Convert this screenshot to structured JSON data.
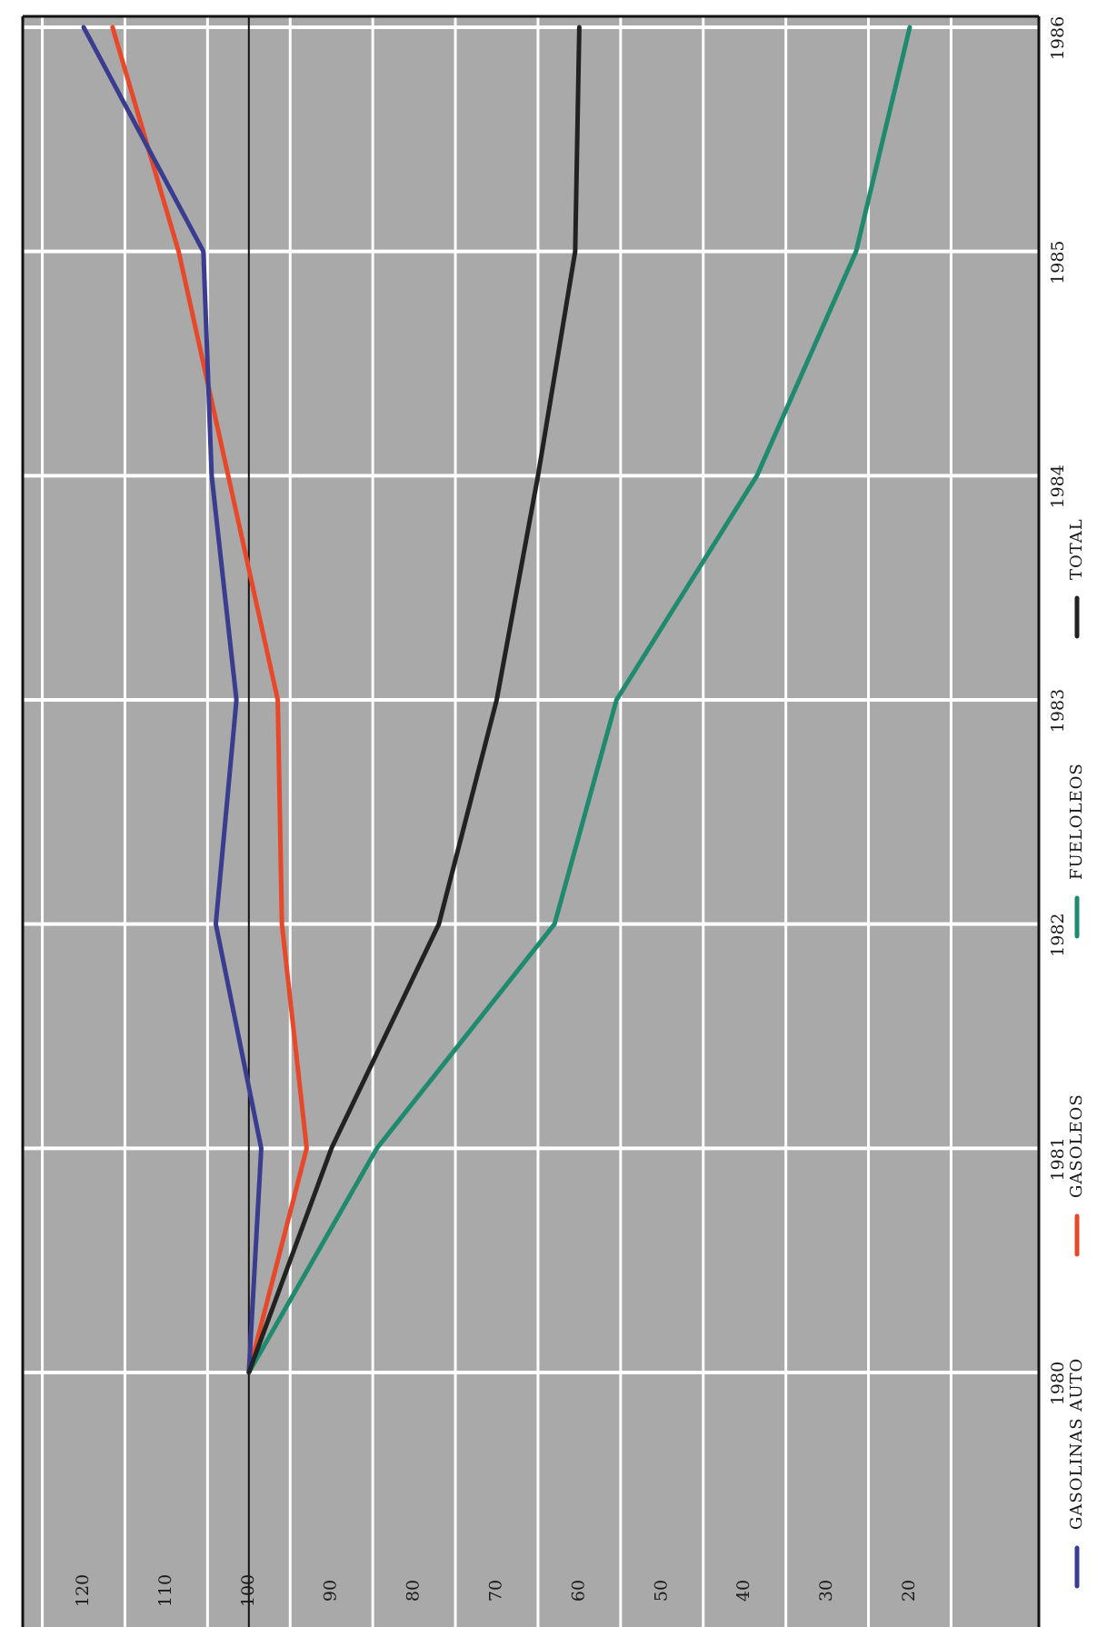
{
  "chart_data": {
    "type": "line",
    "title": "",
    "xlabel": "",
    "ylabel": "",
    "x": [
      1980,
      1981,
      1982,
      1983,
      1984,
      1985,
      1986
    ],
    "y_ticks": [
      120,
      110,
      100,
      90,
      80,
      70,
      60,
      50,
      40,
      30,
      20
    ],
    "ylim": [
      15,
      125
    ],
    "grid": true,
    "legend_position": "bottom",
    "reference_line": 100,
    "background_color": "#a9a9a9",
    "series": [
      {
        "name": "GASOLINAS AUTO",
        "color": "#3a3d8f",
        "values": [
          100,
          98.5,
          104,
          101.5,
          104.5,
          105.5,
          120
        ]
      },
      {
        "name": "GASOLEOS",
        "color": "#e8482a",
        "values": [
          100,
          93,
          96,
          96.5,
          102.5,
          108.5,
          116.5
        ]
      },
      {
        "name": "FUELOLEOS",
        "color": "#1f8a6e",
        "values": [
          100,
          84.5,
          63,
          55.5,
          38.5,
          26.5,
          20
        ]
      },
      {
        "name": "TOTAL",
        "color": "#222222",
        "values": [
          100,
          90,
          77,
          70,
          65,
          60.5,
          60
        ]
      }
    ]
  }
}
